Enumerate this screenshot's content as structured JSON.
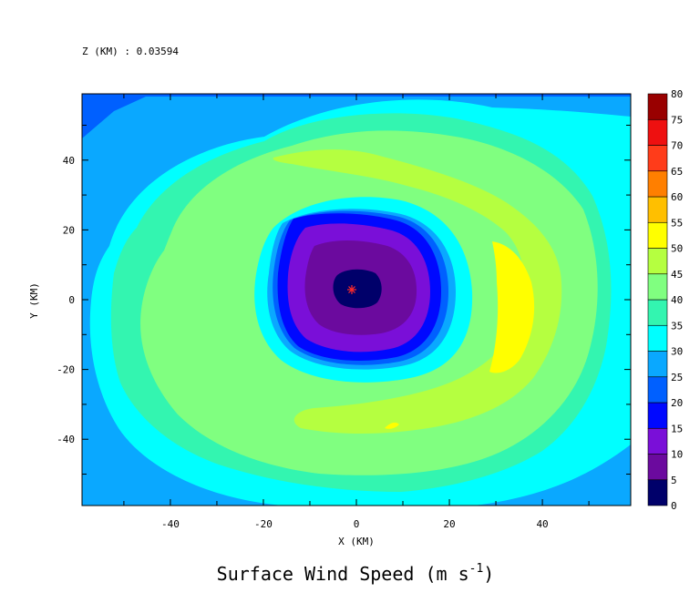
{
  "chart_data": {
    "type": "heatmap",
    "subtitle": "Z (KM) : 0.03594",
    "title": "Surface Wind Speed (m s",
    "title_exponent": "-1",
    "title_close": ")",
    "xlabel": "X (KM)",
    "ylabel": "Y (KM)",
    "xlim": [
      -59,
      59
    ],
    "ylim": [
      -59,
      59
    ],
    "x_ticks": [
      -40,
      -20,
      0,
      20,
      40
    ],
    "y_ticks": [
      -40,
      -20,
      0,
      20,
      40
    ],
    "x_tick_labels": [
      "-40",
      "-20",
      "0",
      "20",
      "40"
    ],
    "y_tick_labels": [
      "-40",
      "-20",
      "0",
      "20",
      "40"
    ],
    "colorbar": {
      "levels": [
        0,
        5,
        10,
        15,
        20,
        25,
        30,
        35,
        40,
        45,
        50,
        55,
        60,
        65,
        70,
        75,
        80
      ],
      "labels": [
        "0",
        "5",
        "10",
        "15",
        "20",
        "25",
        "30",
        "35",
        "40",
        "45",
        "50",
        "55",
        "60",
        "65",
        "70",
        "75",
        "80"
      ],
      "colors": [
        "#00006a",
        "#6b0a9e",
        "#7a0fd8",
        "#0008ff",
        "#0060ff",
        "#0aa8ff",
        "#00ffff",
        "#33f5b0",
        "#80ff80",
        "#b5ff40",
        "#ffff00",
        "#ffbf00",
        "#ff7f00",
        "#ff3c1a",
        "#ee1010",
        "#990000"
      ]
    },
    "storm_center": {
      "x": -1,
      "y": 3,
      "marker": "*",
      "color": "#ff2a2a"
    }
  }
}
